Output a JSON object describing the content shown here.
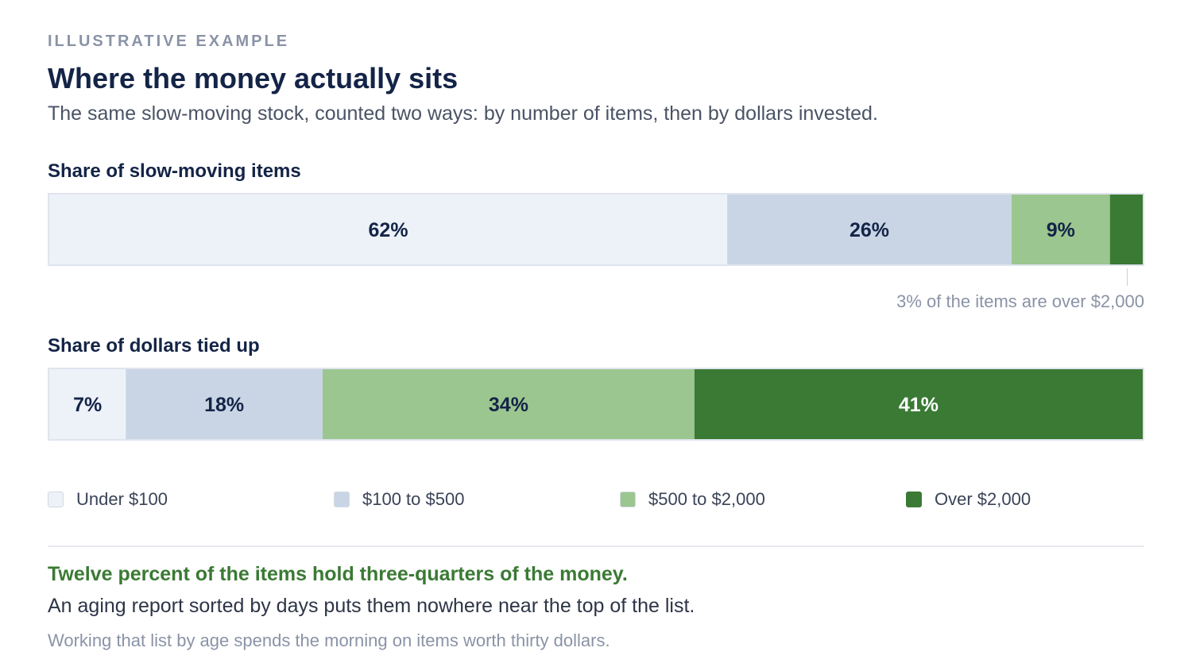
{
  "header": {
    "eyebrow": "ILLUSTRATIVE EXAMPLE",
    "title": "Where the money actually sits",
    "subtitle": "The same slow-moving stock, counted two ways: by number of items, then by dollars invested."
  },
  "colors": {
    "under_100": "#edf1f8",
    "100_to_500": "#c9d5e5",
    "500_to_2000": "#9cc68f",
    "over_2000": "#3a7a34",
    "dark_label": "#142447",
    "light_label": "#ffffff"
  },
  "chart_data": [
    {
      "type": "bar",
      "orientation": "horizontal-stacked-100",
      "title": "Share of slow-moving items",
      "categories": [
        "Under $100",
        "$100 to $500",
        "$500 to $2,000",
        "Over $2,000"
      ],
      "values": [
        62,
        26,
        9,
        3
      ],
      "data_labels": [
        "62%",
        "26%",
        "9%",
        ""
      ],
      "unit": "%",
      "annotation": "3% of the items are over $2,000"
    },
    {
      "type": "bar",
      "orientation": "horizontal-stacked-100",
      "title": "Share of dollars tied up",
      "categories": [
        "Under $100",
        "$100 to $500",
        "$500 to $2,000",
        "Over $2,000"
      ],
      "values": [
        7,
        18,
        34,
        41
      ],
      "data_labels": [
        "7%",
        "18%",
        "34%",
        "41%"
      ],
      "unit": "%"
    }
  ],
  "legend": {
    "placement": "bottom",
    "items": [
      "Under $100",
      "$100 to $500",
      "$500 to $2,000",
      "Over $2,000"
    ]
  },
  "footer": {
    "takeaway": "Twelve percent of the items hold three-quarters of the money.",
    "body": "An aging report sorted by days puts them nowhere near the top of the list.",
    "note": "Working that list by age spends the morning on items worth thirty dollars."
  }
}
